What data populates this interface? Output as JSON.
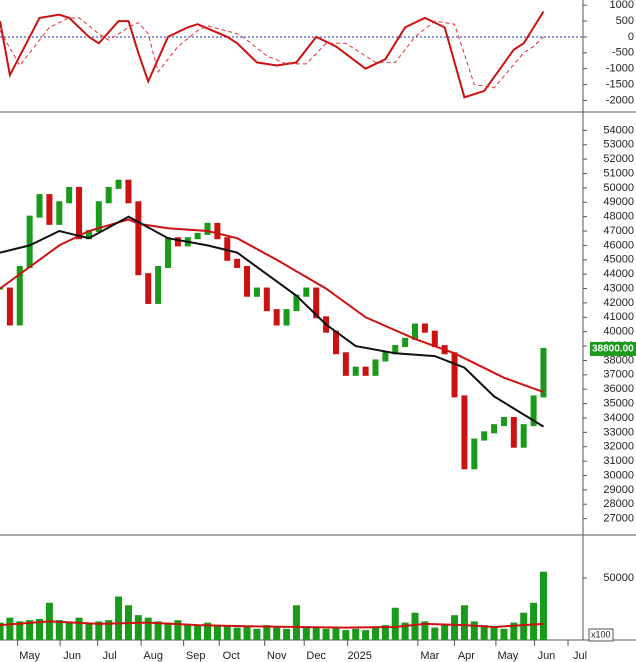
{
  "chart_data": [
    {
      "type": "line",
      "ylim": [
        -2300,
        1100
      ],
      "yticks": [
        1000,
        500,
        0,
        -500,
        -1000,
        -1500,
        -2000
      ],
      "zero_line": true,
      "series": [
        {
          "color": "#cc1111",
          "dash": false,
          "x": [
            0,
            1,
            4,
            6,
            7,
            9,
            10,
            12,
            13,
            14,
            15,
            17,
            19,
            20,
            23,
            24,
            26,
            28,
            30,
            32,
            34,
            37,
            39,
            41,
            43,
            45,
            47,
            49,
            52,
            53,
            54,
            55
          ],
          "values": [
            500,
            -1200,
            600,
            700,
            600,
            0,
            -200,
            500,
            500,
            -500,
            -1400,
            0,
            300,
            400,
            0,
            -200,
            -800,
            -900,
            -800,
            0,
            -300,
            -1000,
            -700,
            300,
            600,
            300,
            -1900,
            -1700,
            -400,
            -200,
            300,
            800
          ]
        },
        {
          "color": "#dd3333",
          "dash": true,
          "x": [
            0,
            2,
            5,
            7,
            8,
            10,
            11,
            13,
            14,
            15,
            16,
            18,
            20,
            21,
            24,
            25,
            27,
            29,
            31,
            33,
            35,
            38,
            40,
            42,
            44,
            46,
            48,
            50,
            53,
            54,
            55
          ],
          "values": [
            200,
            -900,
            300,
            600,
            600,
            100,
            -100,
            300,
            450,
            100,
            -1100,
            -300,
            200,
            350,
            100,
            -100,
            -600,
            -850,
            -850,
            -200,
            -200,
            -800,
            -800,
            0,
            500,
            400,
            -1500,
            -1600,
            -500,
            -300,
            0
          ]
        }
      ]
    },
    {
      "type": "price",
      "ylim": [
        26000,
        55000
      ],
      "yticks": [
        27000,
        28000,
        29000,
        30000,
        31000,
        32000,
        33000,
        34000,
        35000,
        36000,
        37000,
        38000,
        39000,
        40000,
        41000,
        42000,
        43000,
        44000,
        45000,
        46000,
        47000,
        48000,
        49000,
        50000,
        51000,
        52000,
        53000,
        54000
      ],
      "last_label": "38800.00",
      "series": [
        {
          "color": "#1a9a1a",
          "down_color": "#cc1111",
          "x": [
            0,
            1,
            2,
            3,
            4,
            5,
            6,
            7,
            8,
            9,
            10,
            11,
            12,
            13,
            14,
            15,
            16,
            17,
            18,
            19,
            20,
            21,
            22,
            23,
            24,
            25,
            26,
            27,
            28,
            29,
            30,
            31,
            32,
            33,
            34,
            35,
            36,
            37,
            38,
            39,
            40,
            41,
            42,
            43,
            44,
            45,
            46,
            47,
            48,
            49,
            50,
            51,
            52,
            53,
            54,
            55
          ],
          "values": [
            43000,
            40500,
            44500,
            48000,
            49500,
            47500,
            49000,
            50000,
            46500,
            47000,
            49000,
            50000,
            50500,
            49000,
            44000,
            42000,
            44500,
            46500,
            46000,
            46500,
            46800,
            47500,
            46500,
            45000,
            44500,
            42500,
            43000,
            41500,
            40500,
            41500,
            42500,
            43000,
            41000,
            40000,
            38500,
            37000,
            37500,
            37000,
            38000,
            38500,
            39000,
            39500,
            40500,
            40000,
            39000,
            38500,
            35500,
            30500,
            32500,
            33000,
            33500,
            34000,
            32000,
            33500,
            35500,
            38800
          ]
        },
        {
          "color": "#cc1111",
          "x": [
            0,
            3,
            6,
            9,
            13,
            14,
            17,
            21,
            24,
            28,
            33,
            37,
            42,
            46,
            51,
            55
          ],
          "values": [
            43000,
            44500,
            46000,
            47000,
            47800,
            47500,
            47200,
            47000,
            46500,
            45000,
            43000,
            41000,
            39500,
            38500,
            36800,
            35800
          ]
        },
        {
          "color": "#111111",
          "x": [
            0,
            3,
            6,
            9,
            13,
            17,
            21,
            24,
            27,
            30,
            33,
            36,
            40,
            44,
            47,
            50,
            55
          ],
          "values": [
            45500,
            46000,
            47000,
            46500,
            48000,
            46500,
            46000,
            45500,
            44000,
            42500,
            40500,
            39000,
            38500,
            38300,
            37500,
            35500,
            33400
          ]
        }
      ]
    },
    {
      "type": "volume",
      "ylim": [
        0,
        83000
      ],
      "yticks": [
        50000
      ],
      "unit_label": "x100",
      "xlim": [
        0,
        59
      ],
      "xticks": [
        {
          "value": 3,
          "label": "May"
        },
        {
          "value": 7.3,
          "label": "Jun"
        },
        {
          "value": 11.1,
          "label": "Jul"
        },
        {
          "value": 15.5,
          "label": "Aug"
        },
        {
          "value": 19.8,
          "label": "Sep"
        },
        {
          "value": 23.4,
          "label": "Oct"
        },
        {
          "value": 28,
          "label": "Nov"
        },
        {
          "value": 32,
          "label": "Dec"
        },
        {
          "value": 36.4,
          "label": "2025"
        },
        {
          "value": 43.5,
          "label": "Mar"
        },
        {
          "value": 47.2,
          "label": "Apr"
        },
        {
          "value": 51.4,
          "label": "May"
        },
        {
          "value": 55.3,
          "label": "Jun"
        },
        {
          "value": 58.7,
          "label": "Jul"
        }
      ],
      "series": [
        {
          "color": "#1a9a1a",
          "x": [
            0,
            1,
            2,
            3,
            4,
            5,
            6,
            7,
            8,
            9,
            10,
            11,
            12,
            13,
            14,
            15,
            16,
            17,
            18,
            19,
            20,
            21,
            22,
            23,
            24,
            25,
            26,
            27,
            28,
            29,
            30,
            31,
            32,
            33,
            34,
            35,
            36,
            37,
            38,
            39,
            40,
            41,
            42,
            43,
            44,
            45,
            46,
            47,
            48,
            49,
            50,
            51,
            52,
            53,
            54,
            55
          ],
          "values": [
            14000,
            18000,
            15000,
            16000,
            17000,
            30000,
            16000,
            14000,
            18000,
            13000,
            15000,
            16000,
            35000,
            28000,
            20000,
            18000,
            15000,
            14000,
            16000,
            13000,
            12000,
            14000,
            11000,
            12000,
            10000,
            11000,
            9000,
            12000,
            10000,
            9000,
            28000,
            11000,
            10000,
            9000,
            10000,
            8000,
            9000,
            8000,
            10000,
            12000,
            26000,
            14000,
            22000,
            15000,
            10000,
            12000,
            20000,
            28000,
            15000,
            12000,
            10000,
            9000,
            14000,
            22000,
            30000,
            55000
          ]
        },
        {
          "color": "#cc1111",
          "x": [
            0,
            5,
            10,
            15,
            20,
            25,
            30,
            35,
            40,
            43,
            47,
            50,
            53,
            55
          ],
          "values": [
            12000,
            15000,
            13000,
            14000,
            12000,
            11000,
            10500,
            10000,
            10500,
            13000,
            12000,
            10500,
            12000,
            13000
          ]
        }
      ]
    }
  ]
}
